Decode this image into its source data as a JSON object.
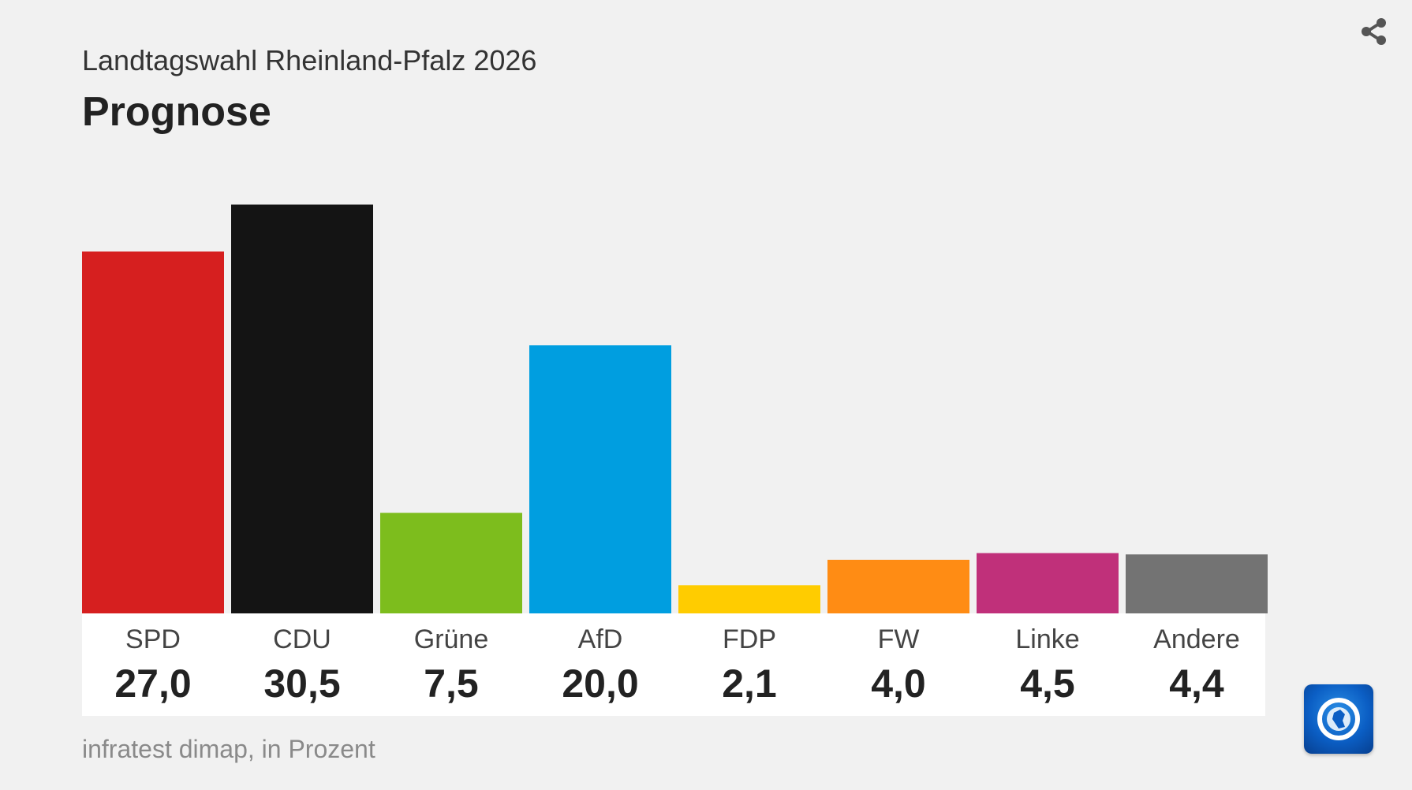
{
  "header": {
    "subtitle": "Landtagswahl Rheinland-Pfalz 2026",
    "title": "Prognose"
  },
  "footer": {
    "source": "infratest dimap, in Prozent"
  },
  "icons": {
    "share": "share-icon",
    "logo": "tagesschau-logo"
  },
  "chart_data": {
    "type": "bar",
    "title": "Prognose",
    "subtitle": "Landtagswahl Rheinland-Pfalz 2026",
    "xlabel": "",
    "ylabel": "Prozent",
    "ylim": [
      0,
      35
    ],
    "categories": [
      "SPD",
      "CDU",
      "Grüne",
      "AfD",
      "FDP",
      "FW",
      "Linke",
      "Andere"
    ],
    "values": [
      27.0,
      30.5,
      7.5,
      20.0,
      2.1,
      4.0,
      4.5,
      4.4
    ],
    "value_labels": [
      "27,0",
      "30,5",
      "7,5",
      "20,0",
      "2,1",
      "4,0",
      "4,5",
      "4,4"
    ],
    "colors": [
      "#d61f1f",
      "#141414",
      "#7dbd1d",
      "#009ee0",
      "#ffcc00",
      "#ff8c14",
      "#c0307a",
      "#737373"
    ],
    "source": "infratest dimap, in Prozent"
  }
}
